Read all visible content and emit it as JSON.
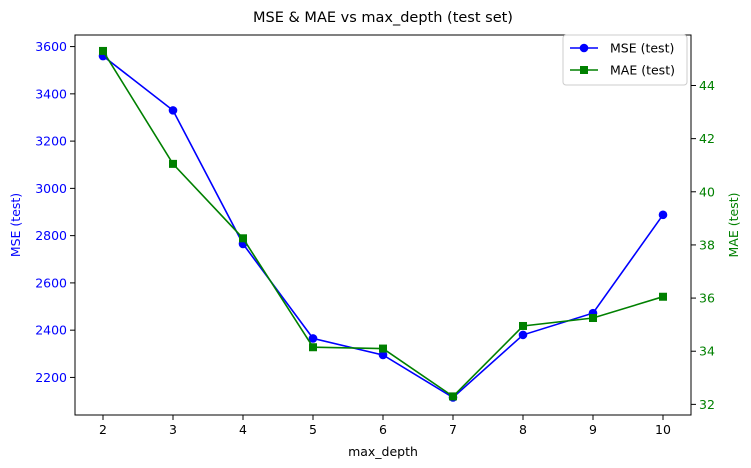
{
  "chart_data": {
    "type": "line",
    "title": "MSE & MAE vs max_depth (test set)",
    "xlabel": "max_depth",
    "ylabel_left": "MSE (test)",
    "ylabel_right": "MAE (test)",
    "x": [
      2,
      3,
      4,
      5,
      6,
      7,
      8,
      9,
      10
    ],
    "xlim": [
      1.6,
      10.4
    ],
    "ylim_left": [
      2041,
      3649
    ],
    "ylim_right": [
      31.6,
      45.9
    ],
    "yticks_left": [
      2200,
      2400,
      2600,
      2800,
      3000,
      3200,
      3400,
      3600
    ],
    "yticks_right": [
      32,
      34,
      36,
      38,
      40,
      42,
      44
    ],
    "grid": false,
    "legend_position": "top-right",
    "series": [
      {
        "name": "MSE (test)",
        "axis": "left",
        "marker": "circle",
        "color": "#0000ff",
        "values": [
          3560,
          3330,
          2765,
          2365,
          2295,
          2115,
          2380,
          2472,
          2888
        ]
      },
      {
        "name": "MAE (test)",
        "axis": "right",
        "marker": "square",
        "color": "#008000",
        "values": [
          45.3,
          41.05,
          38.25,
          34.15,
          34.1,
          32.3,
          34.95,
          35.25,
          36.05
        ]
      }
    ],
    "colors": {
      "left_axis": "#0000ff",
      "right_axis": "#008000",
      "axis": "#000000"
    }
  }
}
